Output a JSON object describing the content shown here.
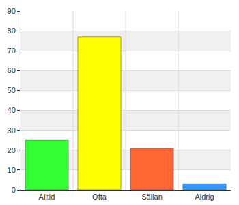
{
  "chart_data": {
    "type": "bar",
    "categories": [
      "Alltid",
      "Ofta",
      "Sällan",
      "Aldrig"
    ],
    "values": [
      25,
      77,
      21,
      3
    ],
    "colors": [
      "#33ff33",
      "#ffff00",
      "#ff6633",
      "#3399ff"
    ],
    "ylim": [
      0,
      90
    ],
    "yticks": [
      0,
      10,
      20,
      30,
      40,
      50,
      60,
      70,
      80,
      90
    ],
    "grid": true
  }
}
